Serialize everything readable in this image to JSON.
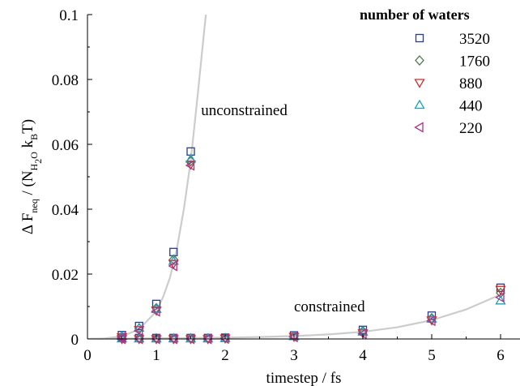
{
  "chart_data": {
    "type": "scatter",
    "xlabel": "timestep / fs",
    "ylabel": {
      "prefix": "Δ F",
      "neq": "neq",
      "open": " / (N",
      "h2o_h": "H",
      "h2o_2": "2",
      "h2o_o": "O",
      "mid": " k",
      "b": "B",
      "close": "T)"
    },
    "xlim": [
      0,
      6.2
    ],
    "ylim": [
      0,
      0.1
    ],
    "x_ticks": [
      0,
      1,
      2,
      3,
      4,
      5,
      6
    ],
    "y_ticks": [
      0,
      0.02,
      0.04,
      0.06,
      0.08,
      0.1
    ],
    "y_tick_labels": [
      "0",
      "0.02",
      "0.04",
      "0.06",
      "0.08",
      "0.1"
    ],
    "grid": false,
    "legend": {
      "title": "number of waters",
      "placement": "top-right"
    },
    "annotations": [
      {
        "text": "unconstrained",
        "x": 1.65,
        "y": 0.069
      },
      {
        "text": "constrained",
        "x": 3.0,
        "y": 0.0085
      }
    ],
    "curves": [
      {
        "name": "unconstrained-fit",
        "color": "#cccccc",
        "x": [
          0,
          0.25,
          0.5,
          0.75,
          1.0,
          1.1,
          1.2,
          1.3,
          1.4,
          1.5,
          1.6,
          1.7,
          1.72
        ],
        "y": [
          0,
          0.00015,
          0.0008,
          0.003,
          0.0085,
          0.013,
          0.019,
          0.028,
          0.04,
          0.055,
          0.075,
          0.096,
          0.1
        ]
      },
      {
        "name": "constrained-fit",
        "color": "#cccccc",
        "x": [
          0,
          0.5,
          1,
          1.5,
          2,
          2.5,
          3,
          3.5,
          4,
          4.5,
          5,
          5.5,
          6
        ],
        "y": [
          0,
          0.0001,
          0.0002,
          0.0003,
          0.0004,
          0.0006,
          0.0009,
          0.0014,
          0.0022,
          0.0036,
          0.0058,
          0.0091,
          0.0137
        ]
      }
    ],
    "series": [
      {
        "name": "3520",
        "marker": "square",
        "color": "#2a3a8c",
        "points": [
          [
            0.5,
            0.0012
          ],
          [
            0.75,
            0.004
          ],
          [
            1.0,
            0.0108
          ],
          [
            1.25,
            0.0268
          ],
          [
            1.5,
            0.0578
          ],
          [
            0.5,
            0.0004
          ],
          [
            0.75,
            0.0003
          ],
          [
            1.0,
            0.0003
          ],
          [
            1.25,
            0.0003
          ],
          [
            1.5,
            0.0003
          ],
          [
            1.75,
            0.0003
          ],
          [
            2.0,
            0.0004
          ],
          [
            3.0,
            0.0011
          ],
          [
            4.0,
            0.0028
          ],
          [
            5.0,
            0.0072
          ],
          [
            6.0,
            0.0158
          ]
        ]
      },
      {
        "name": "1760",
        "marker": "diamond",
        "color": "#4a7a4a",
        "points": [
          [
            0.5,
            0.0008
          ],
          [
            0.75,
            0.0032
          ],
          [
            1.0,
            0.0095
          ],
          [
            1.25,
            0.0245
          ],
          [
            1.5,
            0.0548
          ],
          [
            0.5,
            0.0002
          ],
          [
            0.75,
            0.0002
          ],
          [
            1.0,
            0.0002
          ],
          [
            1.25,
            0.0002
          ],
          [
            1.5,
            0.0002
          ],
          [
            1.75,
            0.0002
          ],
          [
            2.0,
            0.0003
          ],
          [
            3.0,
            0.0009
          ],
          [
            4.0,
            0.0024
          ],
          [
            5.0,
            0.0064
          ],
          [
            6.0,
            0.0142
          ]
        ]
      },
      {
        "name": "880",
        "marker": "triangle-down",
        "color": "#d42a2a",
        "points": [
          [
            0.5,
            0.0006
          ],
          [
            0.75,
            0.0028
          ],
          [
            1.0,
            0.0088
          ],
          [
            1.25,
            0.0232
          ],
          [
            1.5,
            0.0538
          ],
          [
            0.5,
            0.0
          ],
          [
            0.75,
            0.0
          ],
          [
            1.0,
            0.0
          ],
          [
            1.25,
            0.0
          ],
          [
            1.5,
            0.0
          ],
          [
            1.75,
            0.0
          ],
          [
            2.0,
            0.0002
          ],
          [
            3.0,
            0.0007
          ],
          [
            4.0,
            0.0018
          ],
          [
            5.0,
            0.0058
          ],
          [
            6.0,
            0.0152
          ]
        ]
      },
      {
        "name": "440",
        "marker": "triangle-up",
        "color": "#1aa0c0",
        "points": [
          [
            0.5,
            0.0009
          ],
          [
            0.75,
            0.0034
          ],
          [
            1.0,
            0.0092
          ],
          [
            1.25,
            0.024
          ],
          [
            1.5,
            0.0555
          ],
          [
            0.5,
            0.0001
          ],
          [
            0.75,
            0.0001
          ],
          [
            1.0,
            0.0001
          ],
          [
            1.25,
            0.0001
          ],
          [
            1.5,
            0.0001
          ],
          [
            1.75,
            0.0001
          ],
          [
            2.0,
            0.0002
          ],
          [
            3.0,
            0.0008
          ],
          [
            4.0,
            0.0022
          ],
          [
            5.0,
            0.0062
          ],
          [
            6.0,
            0.0118
          ]
        ]
      },
      {
        "name": "220",
        "marker": "triangle-left",
        "color": "#b0308a",
        "points": [
          [
            0.5,
            0.0005
          ],
          [
            0.75,
            0.0025
          ],
          [
            1.0,
            0.0085
          ],
          [
            1.25,
            0.0225
          ],
          [
            1.5,
            0.0535
          ],
          [
            0.5,
            0.0
          ],
          [
            0.75,
            0.0
          ],
          [
            1.0,
            0.0
          ],
          [
            1.25,
            0.0
          ],
          [
            1.5,
            0.0
          ],
          [
            1.75,
            0.0
          ],
          [
            2.0,
            0.0001
          ],
          [
            3.0,
            0.0006
          ],
          [
            4.0,
            0.0016
          ],
          [
            5.0,
            0.0056
          ],
          [
            6.0,
            0.0128
          ]
        ]
      }
    ]
  }
}
